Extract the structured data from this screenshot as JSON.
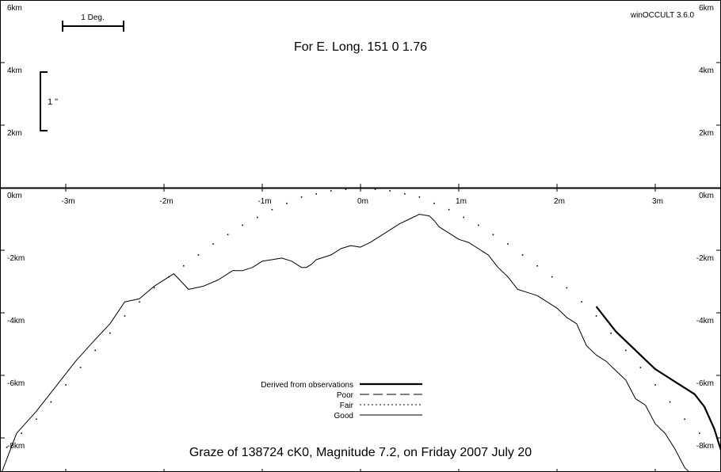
{
  "chart_data": {
    "type": "line",
    "title": "For E. Long. 151  0  1.76",
    "caption": "Graze of   138724  cK0,  Magnitude   7.2,  on Friday  2007  July  20",
    "software": "winOCCULT 3.6.0",
    "xlabel": "",
    "ylabel": "",
    "xlim": [
      -3.6,
      3.7
    ],
    "ylim": [
      -8.9,
      6
    ],
    "x_ticks": [
      {
        "value": -3,
        "label": "-3m"
      },
      {
        "value": -2,
        "label": "-2m"
      },
      {
        "value": -1,
        "label": "-1m"
      },
      {
        "value": 0,
        "label": "0m"
      },
      {
        "value": 1,
        "label": "1m"
      },
      {
        "value": 2,
        "label": "2m"
      },
      {
        "value": 3,
        "label": "3m"
      }
    ],
    "y_ticks": [
      {
        "value": 6,
        "label": "6km"
      },
      {
        "value": 4,
        "label": "4km"
      },
      {
        "value": 2,
        "label": "2km"
      },
      {
        "value": 0,
        "label": "0km"
      },
      {
        "value": -2,
        "label": "-2km"
      },
      {
        "value": -4,
        "label": "-4km"
      },
      {
        "value": -6,
        "label": "-6km"
      },
      {
        "value": -8,
        "label": "-8km"
      }
    ],
    "scale_bars": [
      {
        "label": "1 Deg.",
        "orientation": "horizontal"
      },
      {
        "label": "1 \"",
        "orientation": "vertical"
      }
    ],
    "legend": {
      "placement": "bottom-center",
      "entries": [
        {
          "label": "Derived from observations",
          "style": "thick"
        },
        {
          "label": "Poor",
          "style": "dashed"
        },
        {
          "label": "Fair",
          "style": "dotted"
        },
        {
          "label": "Good",
          "style": "solid"
        }
      ]
    },
    "series": [
      {
        "style": "dotted",
        "x": [
          -3.6,
          -3.3,
          -3.0,
          -2.7,
          -2.4,
          -2.1,
          -1.8,
          -1.5,
          -1.2,
          -0.9,
          -0.6,
          -0.3,
          0.0,
          0.3,
          0.6,
          0.9,
          1.2,
          1.5,
          1.8,
          2.1,
          2.4,
          2.7,
          3.0,
          3.3,
          3.6
        ],
        "y": [
          -8.3,
          -7.4,
          -6.3,
          -5.2,
          -4.1,
          -3.2,
          -2.5,
          -1.8,
          -1.2,
          -0.7,
          -0.3,
          -0.1,
          0.0,
          -0.1,
          -0.3,
          -0.7,
          -1.2,
          -1.8,
          -2.5,
          -3.2,
          -4.1,
          -5.2,
          -6.3,
          -7.4,
          -8.3
        ]
      },
      {
        "style": "solid",
        "x": [
          -3.67,
          -3.5,
          -3.3,
          -3.1,
          -2.9,
          -2.7,
          -2.55,
          -2.4,
          -2.25,
          -2.1,
          -1.9,
          -1.75,
          -1.6,
          -1.45,
          -1.3,
          -1.2,
          -1.1,
          -1.0,
          -0.9,
          -0.8,
          -0.7,
          -0.6,
          -0.55,
          -0.5,
          -0.45,
          -0.4,
          -0.3,
          -0.2,
          -0.1,
          0.0,
          0.1,
          0.2,
          0.3,
          0.4,
          0.5,
          0.6,
          0.7,
          0.75,
          0.8,
          0.9,
          1.0,
          1.1,
          1.2,
          1.3,
          1.4,
          1.5,
          1.6,
          1.7,
          1.8,
          1.9,
          2.0,
          2.1,
          2.2,
          2.3,
          2.4,
          2.5,
          2.6,
          2.7,
          2.8,
          2.9,
          3.0,
          3.1,
          3.2,
          3.3,
          3.4,
          3.5,
          3.55
        ],
        "y": [
          -8.9,
          -7.5,
          -6.8,
          -6.0,
          -5.2,
          -4.5,
          -4.0,
          -3.3,
          -3.2,
          -2.8,
          -2.4,
          -2.9,
          -2.8,
          -2.6,
          -2.3,
          -2.3,
          -2.2,
          -2.0,
          -1.95,
          -1.9,
          -2.0,
          -2.2,
          -2.2,
          -2.1,
          -1.95,
          -1.9,
          -1.8,
          -1.6,
          -1.5,
          -1.55,
          -1.4,
          -1.2,
          -1.0,
          -0.8,
          -0.65,
          -0.5,
          -0.55,
          -0.7,
          -0.9,
          -1.1,
          -1.3,
          -1.4,
          -1.6,
          -1.8,
          -2.2,
          -2.5,
          -2.9,
          -3.0,
          -3.1,
          -3.3,
          -3.5,
          -3.8,
          -4.0,
          -4.7,
          -5.0,
          -5.2,
          -5.5,
          -5.8,
          -6.4,
          -6.6,
          -7.2,
          -7.5,
          -8.0,
          -8.6,
          -8.9,
          -9.0,
          -9.0
        ],
        "offset_y": -0.35
      },
      {
        "style": "thick",
        "x": [
          2.4,
          2.5,
          2.6,
          2.7,
          2.8,
          2.9,
          3.0,
          3.1,
          3.2,
          3.3,
          3.4,
          3.5,
          3.6,
          3.67
        ],
        "y": [
          -3.8,
          -4.2,
          -4.6,
          -4.9,
          -5.2,
          -5.5,
          -5.8,
          -6.0,
          -6.2,
          -6.4,
          -6.6,
          -7.0,
          -7.7,
          -8.4
        ]
      }
    ]
  }
}
